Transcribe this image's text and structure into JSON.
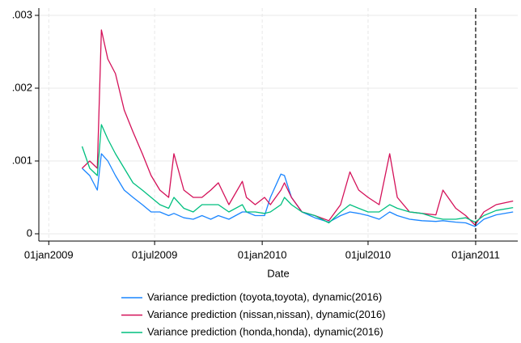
{
  "chart_data": {
    "type": "line",
    "x_label": "Date",
    "x": [
      "2009-02-27",
      "2009-03-12",
      "2009-03-25",
      "2009-04-01",
      "2009-04-12",
      "2009-04-25",
      "2009-05-10",
      "2009-05-25",
      "2009-06-10",
      "2009-06-25",
      "2009-07-10",
      "2009-07-25",
      "2009-08-03",
      "2009-08-20",
      "2009-09-05",
      "2009-09-20",
      "2009-10-05",
      "2009-10-18",
      "2009-11-05",
      "2009-11-28",
      "2009-12-05",
      "2009-12-20",
      "2010-01-05",
      "2010-01-15",
      "2010-02-02",
      "2010-02-08",
      "2010-02-20",
      "2010-03-10",
      "2010-04-01",
      "2010-04-25",
      "2010-05-15",
      "2010-05-31",
      "2010-06-15",
      "2010-07-01",
      "2010-07-20",
      "2010-08-07",
      "2010-08-20",
      "2010-09-10",
      "2010-10-01",
      "2010-10-25",
      "2010-11-06",
      "2010-11-28",
      "2010-12-15",
      "2010-12-31",
      "2011-01-15",
      "2011-02-05",
      "2011-03-06"
    ],
    "series": [
      {
        "name": "Variance prediction (toyota,toyota), dynamic(2016)",
        "color": "#1a85ff",
        "values": [
          0.0009,
          0.0008,
          0.0006,
          0.0011,
          0.001,
          0.0008,
          0.0006,
          0.0005,
          0.0004,
          0.0003,
          0.0003,
          0.00025,
          0.00028,
          0.00022,
          0.0002,
          0.00025,
          0.0002,
          0.00025,
          0.0002,
          0.0003,
          0.0003,
          0.00025,
          0.00025,
          0.0005,
          0.00082,
          0.0008,
          0.0005,
          0.0003,
          0.00022,
          0.00016,
          0.00025,
          0.0003,
          0.00028,
          0.00025,
          0.0002,
          0.0003,
          0.00025,
          0.0002,
          0.00018,
          0.00017,
          0.00018,
          0.00016,
          0.00015,
          0.0001,
          0.0002,
          0.00026,
          0.0003
        ]
      },
      {
        "name": "Variance prediction (nissan,nissan), dynamic(2016)",
        "color": "#d41159",
        "values": [
          0.0009,
          0.001,
          0.0009,
          0.0028,
          0.0024,
          0.0022,
          0.0017,
          0.0014,
          0.0011,
          0.0008,
          0.0006,
          0.0005,
          0.0011,
          0.0006,
          0.0005,
          0.0005,
          0.0006,
          0.0007,
          0.0004,
          0.00072,
          0.0005,
          0.0004,
          0.0005,
          0.0004,
          0.0006,
          0.0007,
          0.0005,
          0.0003,
          0.00025,
          0.00018,
          0.0004,
          0.00085,
          0.0006,
          0.0005,
          0.0004,
          0.0011,
          0.0005,
          0.0003,
          0.00028,
          0.00026,
          0.0006,
          0.00035,
          0.00025,
          0.00012,
          0.0003,
          0.0004,
          0.00045
        ]
      },
      {
        "name": "Variance prediction (honda,honda), dynamic(2016)",
        "color": "#00bf7f",
        "values": [
          0.0012,
          0.0009,
          0.0008,
          0.0015,
          0.0013,
          0.0011,
          0.0009,
          0.0007,
          0.0006,
          0.0005,
          0.0004,
          0.00035,
          0.0005,
          0.00035,
          0.0003,
          0.0004,
          0.0004,
          0.0004,
          0.0003,
          0.0004,
          0.0003,
          0.0003,
          0.00028,
          0.0003,
          0.0004,
          0.0005,
          0.0004,
          0.0003,
          0.00025,
          0.00015,
          0.0003,
          0.0004,
          0.00035,
          0.0003,
          0.0003,
          0.0004,
          0.00035,
          0.0003,
          0.00028,
          0.00022,
          0.0002,
          0.0002,
          0.00022,
          0.00016,
          0.00025,
          0.00032,
          0.00036
        ]
      }
    ],
    "xlim": [
      "2008-12-15",
      "2011-03-14"
    ],
    "xticks": [
      {
        "value": "2009-01-01",
        "label": "01jan2009"
      },
      {
        "value": "2009-07-01",
        "label": "01jul2009"
      },
      {
        "value": "2010-01-01",
        "label": "01jan2010"
      },
      {
        "value": "2010-07-01",
        "label": "01jul2010"
      },
      {
        "value": "2011-01-01",
        "label": "01jan2011"
      }
    ],
    "ylim": [
      -0.0001,
      0.0031
    ],
    "yticks": [
      0,
      {
        "value": 0.001,
        "label": ".001"
      },
      {
        "value": 0.002,
        "label": ".002"
      },
      {
        "value": 0.003,
        "label": ".003"
      }
    ],
    "xline": "2011-01-01",
    "grid": true,
    "legend": "bottom"
  }
}
